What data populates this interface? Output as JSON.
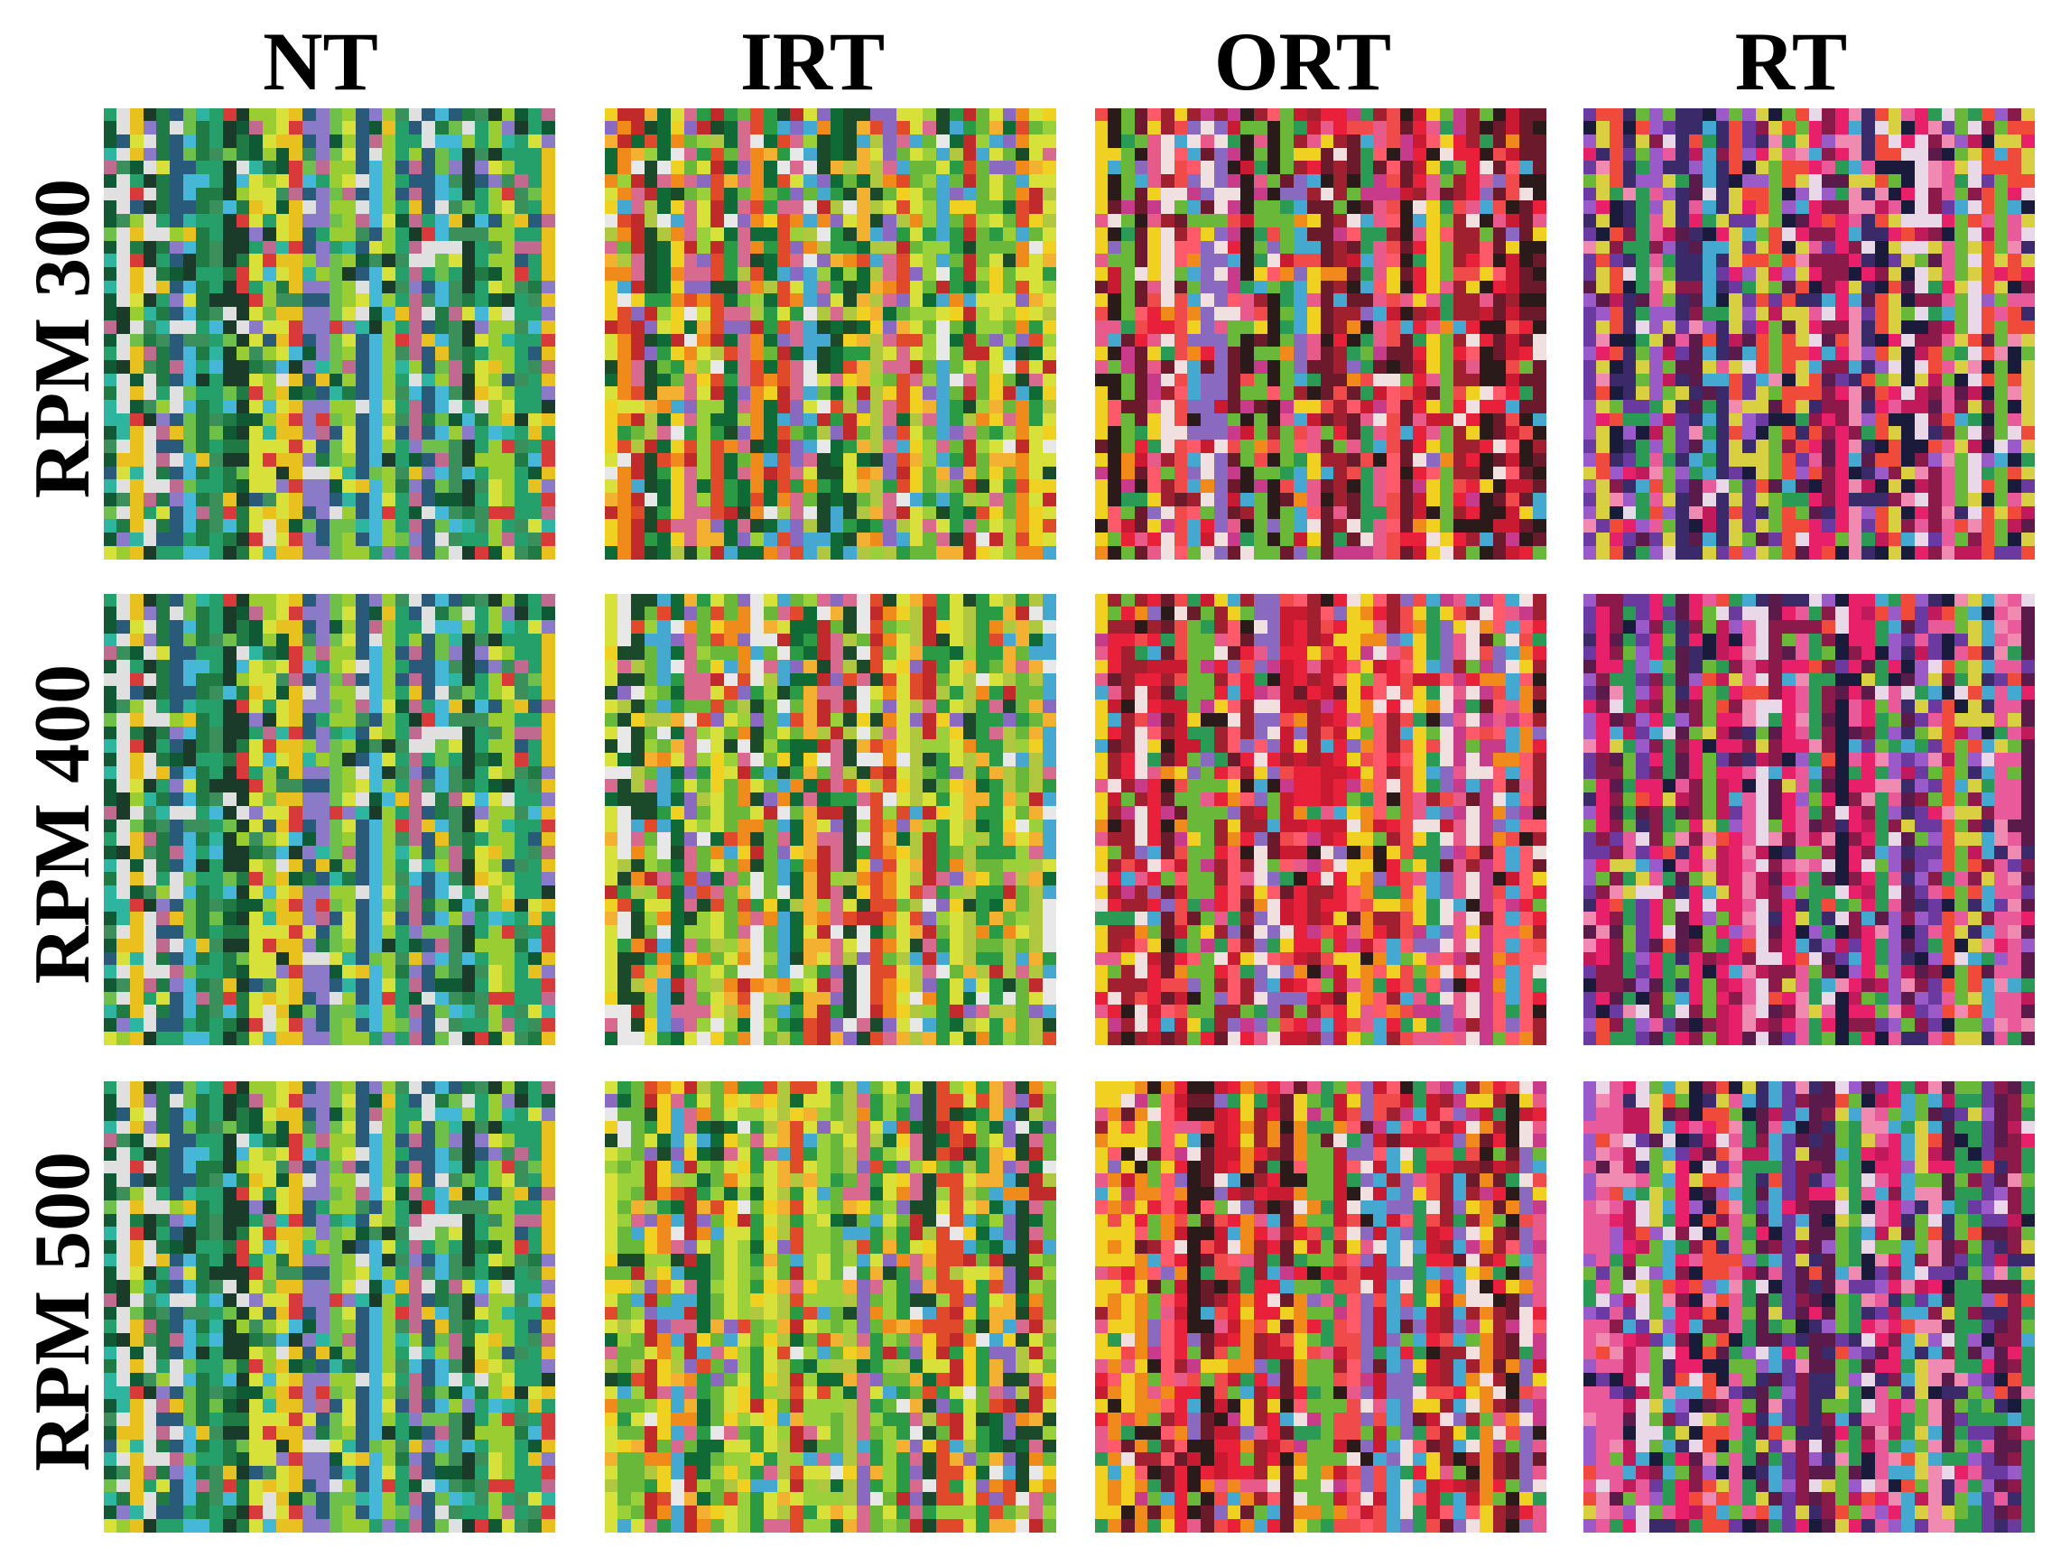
{
  "columns": [
    {
      "label": "NT",
      "palette": [
        "#1f7a44",
        "#26a06a",
        "#3a8f5a",
        "#0f5a35",
        "#2db5a0",
        "#45b8d8",
        "#6fc04a",
        "#9acd32",
        "#d8e03a",
        "#e8c020",
        "#d83a3a",
        "#c06a90",
        "#8a7ac8",
        "#2a5a7a",
        "#e0e0e0",
        "#1a3a2a"
      ]
    },
    {
      "label": "IRT",
      "palette": [
        "#0f6a35",
        "#2a9a45",
        "#6ab83a",
        "#9ad03a",
        "#d8e03a",
        "#f0d020",
        "#f08a1a",
        "#e04a2a",
        "#c02a2a",
        "#d86a90",
        "#8a6ac0",
        "#45a8d0",
        "#e8e8e8",
        "#1a4a2a",
        "#b0c840",
        "#f4b030"
      ]
    },
    {
      "label": "ORT",
      "palette": [
        "#e8203a",
        "#c81a30",
        "#f04a4a",
        "#ff5a6a",
        "#f08a1a",
        "#f0d020",
        "#e85a8a",
        "#c83a8a",
        "#6a1a2a",
        "#2a1a1a",
        "#6ab83a",
        "#2a9a55",
        "#45a8d0",
        "#8a6ac0",
        "#f0e0e0",
        "#a02030"
      ]
    },
    {
      "label": "RT",
      "palette": [
        "#c01a5a",
        "#e8206a",
        "#8a1a4a",
        "#5a1a4a",
        "#3a2a6a",
        "#6a3aa0",
        "#9a5ac8",
        "#e85a9a",
        "#f08ab0",
        "#45a8d0",
        "#2a9a55",
        "#6ab83a",
        "#d8d040",
        "#f04a3a",
        "#1a1a3a",
        "#e8d8e8"
      ]
    }
  ],
  "rows": [
    {
      "label": "RPM 300"
    },
    {
      "label": "RPM 400"
    },
    {
      "label": "RPM 500"
    }
  ]
}
